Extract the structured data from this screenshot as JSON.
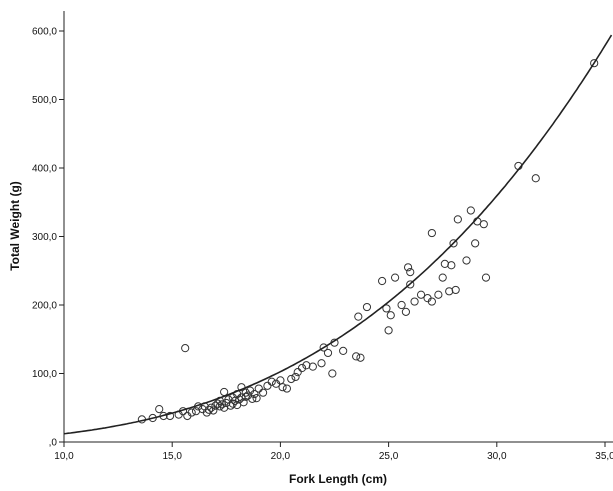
{
  "chart_data": {
    "type": "scatter",
    "xlabel": "Fork Length (cm)",
    "ylabel": "Total Weight (g)",
    "xlim": [
      10.0,
      35.0
    ],
    "ylim": [
      0,
      600
    ],
    "x_ticks": [
      "10,0",
      "15,0",
      "20,0",
      "25,0",
      "30,0",
      "35,0"
    ],
    "y_ticks": [
      ",0",
      "100,0",
      "200,0",
      "300,0",
      "400,0",
      "500,0",
      "600,0"
    ],
    "x_tick_values": [
      10,
      15,
      20,
      25,
      30,
      35
    ],
    "y_tick_values": [
      0,
      100,
      200,
      300,
      400,
      500,
      600
    ],
    "grid": false,
    "marker": "open-circle",
    "fit_curve": {
      "model": "power",
      "a": 0.0098,
      "b": 3.09
    },
    "points": [
      [
        13.6,
        33
      ],
      [
        14.1,
        35
      ],
      [
        14.4,
        48
      ],
      [
        14.6,
        38
      ],
      [
        14.9,
        38
      ],
      [
        15.3,
        40
      ],
      [
        15.5,
        45
      ],
      [
        15.6,
        137
      ],
      [
        15.7,
        38
      ],
      [
        15.9,
        43
      ],
      [
        16.1,
        45
      ],
      [
        16.2,
        52
      ],
      [
        16.4,
        48
      ],
      [
        16.5,
        52
      ],
      [
        16.6,
        43
      ],
      [
        16.7,
        47
      ],
      [
        16.8,
        50
      ],
      [
        16.9,
        46
      ],
      [
        17.0,
        53
      ],
      [
        17.1,
        56
      ],
      [
        17.2,
        60
      ],
      [
        17.2,
        52
      ],
      [
        17.3,
        55
      ],
      [
        17.4,
        73
      ],
      [
        17.4,
        50
      ],
      [
        17.5,
        57
      ],
      [
        17.6,
        62
      ],
      [
        17.7,
        53
      ],
      [
        17.8,
        65
      ],
      [
        17.8,
        56
      ],
      [
        17.9,
        60
      ],
      [
        18.0,
        54
      ],
      [
        18.0,
        70
      ],
      [
        18.1,
        62
      ],
      [
        18.2,
        80
      ],
      [
        18.2,
        65
      ],
      [
        18.3,
        58
      ],
      [
        18.4,
        66
      ],
      [
        18.4,
        72
      ],
      [
        18.5,
        68
      ],
      [
        18.6,
        75
      ],
      [
        18.7,
        63
      ],
      [
        18.8,
        70
      ],
      [
        18.9,
        64
      ],
      [
        19.0,
        78
      ],
      [
        19.2,
        72
      ],
      [
        19.4,
        82
      ],
      [
        19.6,
        88
      ],
      [
        19.8,
        85
      ],
      [
        20.0,
        90
      ],
      [
        20.1,
        80
      ],
      [
        20.3,
        78
      ],
      [
        20.5,
        92
      ],
      [
        20.7,
        95
      ],
      [
        20.8,
        102
      ],
      [
        21.0,
        108
      ],
      [
        21.2,
        112
      ],
      [
        21.5,
        110
      ],
      [
        21.9,
        115
      ],
      [
        22.0,
        138
      ],
      [
        22.2,
        130
      ],
      [
        22.4,
        100
      ],
      [
        22.5,
        145
      ],
      [
        22.9,
        133
      ],
      [
        23.5,
        125
      ],
      [
        23.6,
        183
      ],
      [
        23.7,
        123
      ],
      [
        24.0,
        197
      ],
      [
        24.7,
        235
      ],
      [
        24.9,
        195
      ],
      [
        25.0,
        163
      ],
      [
        25.1,
        185
      ],
      [
        25.3,
        240
      ],
      [
        25.6,
        200
      ],
      [
        25.8,
        190
      ],
      [
        25.9,
        255
      ],
      [
        26.0,
        230
      ],
      [
        26.0,
        248
      ],
      [
        26.2,
        205
      ],
      [
        26.5,
        215
      ],
      [
        26.8,
        210
      ],
      [
        27.0,
        305
      ],
      [
        27.0,
        205
      ],
      [
        27.3,
        215
      ],
      [
        27.5,
        240
      ],
      [
        27.6,
        260
      ],
      [
        27.8,
        220
      ],
      [
        27.9,
        258
      ],
      [
        28.0,
        290
      ],
      [
        28.1,
        222
      ],
      [
        28.2,
        325
      ],
      [
        28.6,
        265
      ],
      [
        28.8,
        338
      ],
      [
        29.0,
        290
      ],
      [
        29.1,
        322
      ],
      [
        29.4,
        318
      ],
      [
        29.5,
        240
      ],
      [
        31.0,
        403
      ],
      [
        31.8,
        385
      ],
      [
        34.5,
        553
      ]
    ]
  }
}
